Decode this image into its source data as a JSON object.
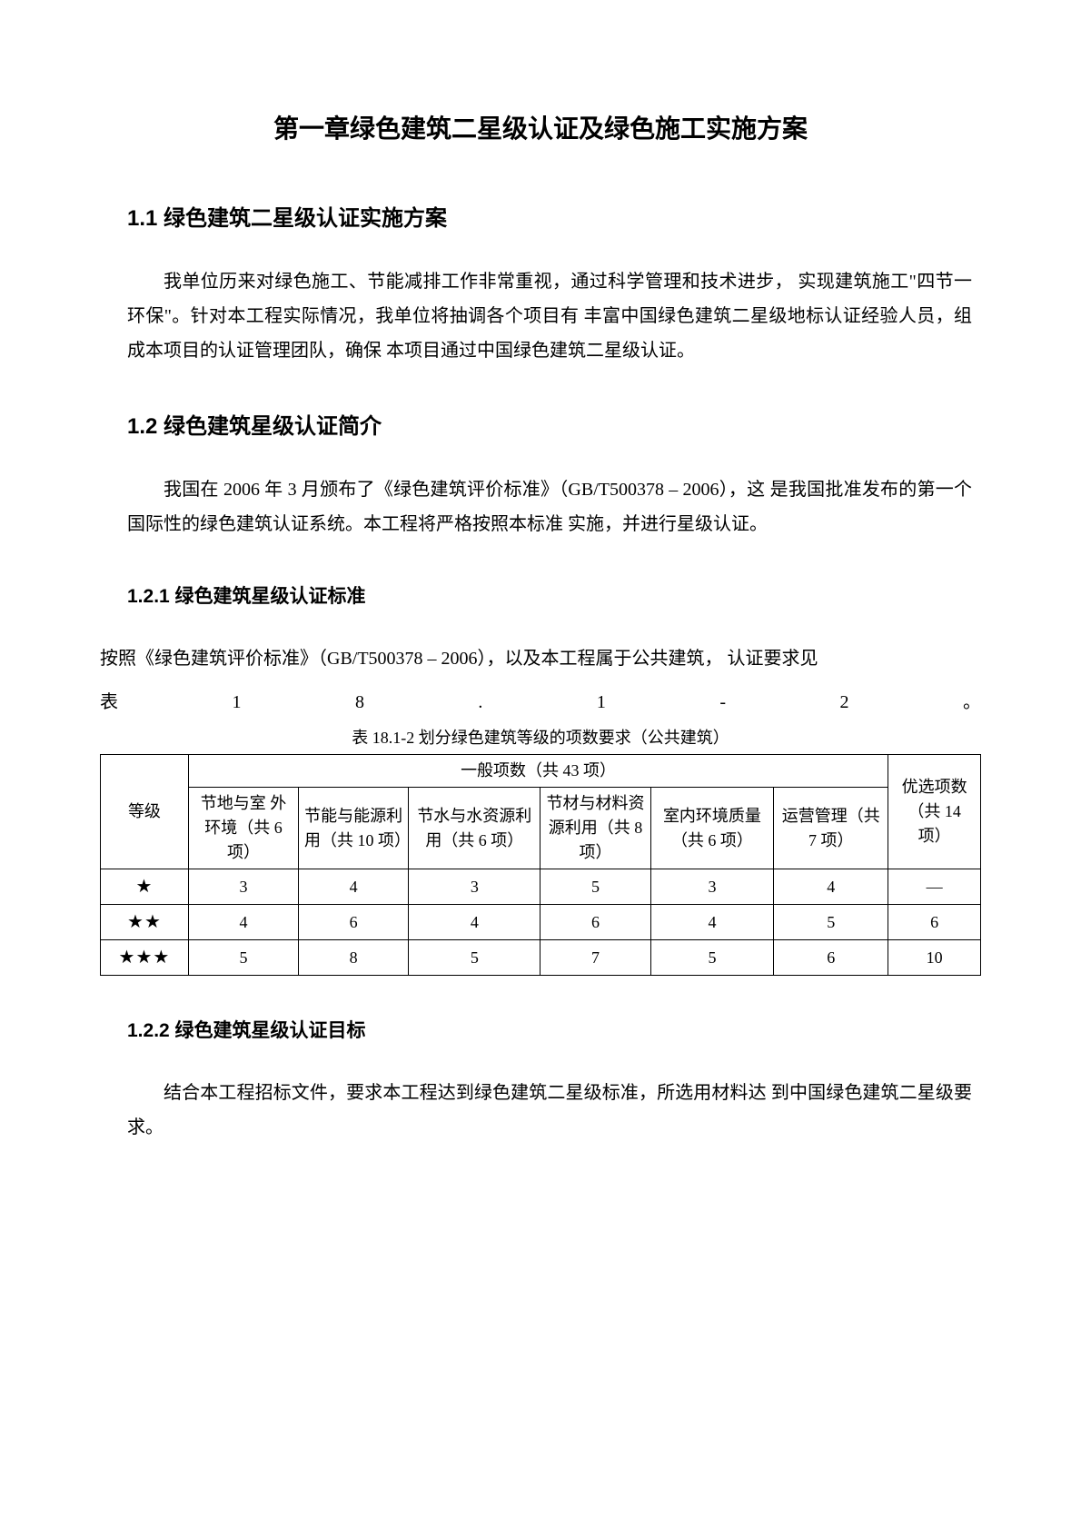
{
  "chapter": {
    "title": "第一章绿色建筑二星级认证及绿色施工实施方案"
  },
  "section11": {
    "title": "1.1 绿色建筑二星级认证实施方案",
    "body": "我单位历来对绿色施工、节能减排工作非常重视，通过科学管理和技术进步， 实现建筑施工\"四节一环保\"。针对本工程实际情况，我单位将抽调各个项目有 丰富中国绿色建筑二星级地标认证经验人员，组成本项目的认证管理团队，确保 本项目通过中国绿色建筑二星级认证。"
  },
  "section12": {
    "title": "1.2 绿色建筑星级认证简介",
    "body": "我国在 2006 年 3 月颁布了《绿色建筑评价标准》（GB/T500378 – 2006），这 是我国批准发布的第一个国际性的绿色建筑认证系统。本工程将严格按照本标准 实施，并进行星级认证。"
  },
  "subsection121": {
    "title": "1.2.1 绿色建筑星级认证标准",
    "line1": "按照《绿色建筑评价标准》（GB/T500378 – 2006），以及本工程属于公共建筑， 认证要求见",
    "line2": [
      "表",
      "1",
      "8",
      ".",
      "1",
      "-",
      "2",
      "。"
    ]
  },
  "table": {
    "caption": "表 18.1-2 划分绿色建筑等级的项数要求（公共建筑）",
    "header_level": "等级",
    "header_general": "一般项数（共 43 项）",
    "header_optional": "优选项数（共 14 项）",
    "columns": [
      "节地与室 外环境（共 6 项）",
      "节能与能源利用（共 10 项）",
      "节水与水资源利用（共 6 项）",
      "节材与材料资源利用（共 8 项）",
      "室内环境质量（共 6 项）",
      "运营管理（共 7 项）"
    ],
    "rows": [
      {
        "level": "★",
        "values": [
          "3",
          "4",
          "3",
          "5",
          "3",
          "4",
          "—"
        ]
      },
      {
        "level": "★★",
        "values": [
          "4",
          "6",
          "4",
          "6",
          "4",
          "5",
          "6"
        ]
      },
      {
        "level": "★★★",
        "values": [
          "5",
          "8",
          "5",
          "7",
          "5",
          "6",
          "10"
        ]
      }
    ],
    "col_widths": [
      "10%",
      "12.5%",
      "12.5%",
      "15%",
      "12.5%",
      "14%",
      "13%",
      "10.5%"
    ]
  },
  "subsection122": {
    "title": "1.2.2 绿色建筑星级认证目标",
    "body": "结合本工程招标文件，要求本工程达到绿色建筑二星级标准，所选用材料达 到中国绿色建筑二星级要求。"
  }
}
